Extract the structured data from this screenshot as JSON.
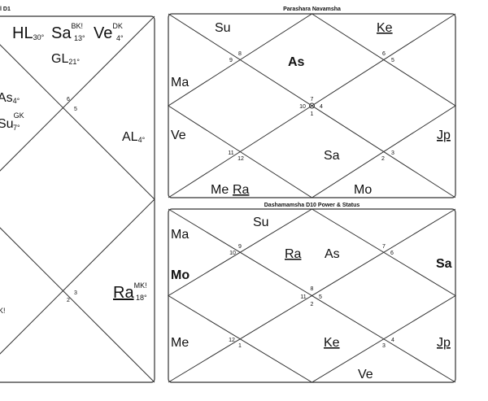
{
  "left_chart": {
    "title": "l D1",
    "houses": [
      6,
      5,
      3,
      2
    ],
    "planets": [
      {
        "name": "HL",
        "degree": "30°"
      },
      {
        "name": "Sa",
        "degree": "13°",
        "tag": "BK!"
      },
      {
        "name": "Ve",
        "degree": "4°",
        "tag": "DK"
      },
      {
        "name": "GL",
        "degree": "21°"
      },
      {
        "name": "As",
        "degree": "4°"
      },
      {
        "name": "Su",
        "degree": "7°",
        "tag": "GK"
      },
      {
        "name": "AL",
        "degree": "4°"
      },
      {
        "name": "Ra",
        "degree": "18°",
        "tag": "MK!"
      }
    ],
    "fragment": "K!"
  },
  "navamsha": {
    "title": "Parashara Navamsha",
    "houses": [
      9,
      8,
      6,
      5,
      7,
      10,
      4,
      1,
      11,
      12,
      3,
      2
    ],
    "planets": [
      "Su",
      "Ke",
      "As",
      "Ma",
      "Ve",
      "Sa",
      "Jp",
      "Me",
      "Ra",
      "Mo"
    ]
  },
  "dashamamsha": {
    "title": "Dashamamsha D10 Power & Status",
    "houses": [
      9,
      10,
      7,
      6,
      8,
      11,
      5,
      2,
      12,
      1,
      4,
      3
    ],
    "planets": [
      "Su",
      "Ma",
      "Ra",
      "As",
      "Mo",
      "Sa",
      "Me",
      "Ke",
      "Jp",
      "Ve"
    ]
  }
}
